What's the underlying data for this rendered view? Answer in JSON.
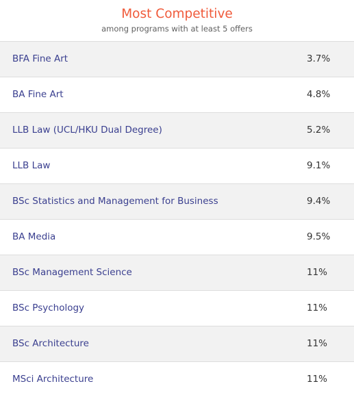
{
  "header": {
    "title": "Most Competitive",
    "subtitle": "among programs with at least 5 offers"
  },
  "rows": [
    {
      "program": "BFA Fine Art",
      "rate": "3.7%"
    },
    {
      "program": "BA Fine Art",
      "rate": "4.8%"
    },
    {
      "program": "LLB Law (UCL/HKU Dual Degree)",
      "rate": "5.2%"
    },
    {
      "program": "LLB Law",
      "rate": "9.1%"
    },
    {
      "program": "BSc Statistics and Management for Business",
      "rate": "9.4%"
    },
    {
      "program": "BA Media",
      "rate": "9.5%"
    },
    {
      "program": "BSc Management Science",
      "rate": "11%"
    },
    {
      "program": "BSc Psychology",
      "rate": "11%"
    },
    {
      "program": "BSc Architecture",
      "rate": "11%"
    },
    {
      "program": "MSci Architecture",
      "rate": "11%"
    }
  ],
  "colors": {
    "title": "#f05a3a",
    "program_text": "#3a3f8f",
    "rate_text": "#333333",
    "row_stripe": "#f2f2f2",
    "divider": "#dddddd"
  }
}
